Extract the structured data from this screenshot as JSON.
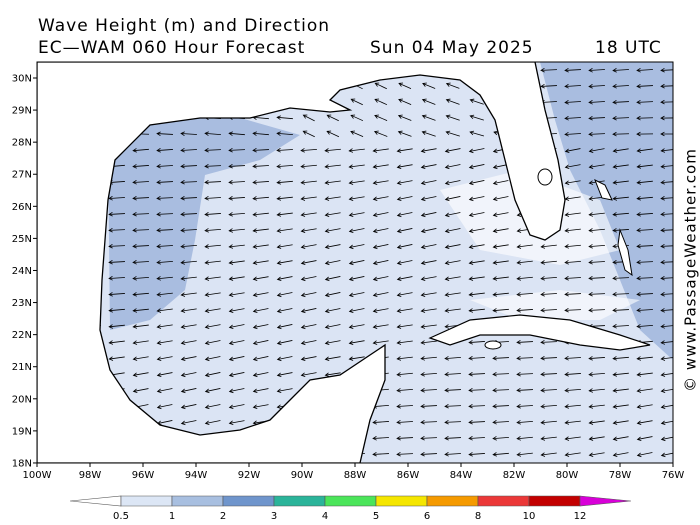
{
  "header": {
    "title": "Wave Height (m) and Direction",
    "subtitle": "EC—WAM 060 Hour Forecast",
    "date": "Sun 04 May 2025",
    "time": "18 UTC"
  },
  "map": {
    "lat_labels": [
      "30N",
      "29N",
      "28N",
      "27N",
      "26N",
      "25N",
      "24N",
      "23N",
      "22N",
      "21N",
      "20N",
      "19N",
      "18N"
    ],
    "lon_labels": [
      "100W",
      "98W",
      "96W",
      "94W",
      "92W",
      "90W",
      "88W",
      "86W",
      "84W",
      "82W",
      "80W",
      "78W",
      "76W"
    ]
  },
  "colorbar": {
    "labels": [
      0.5,
      1,
      2,
      3,
      4,
      5,
      6,
      8,
      10,
      12
    ],
    "colors": [
      "#ffffff",
      "#dce6f5",
      "#a8bfe0",
      "#6f95cc",
      "#2bb49a",
      "#4be55a",
      "#f5e600",
      "#f59a00",
      "#eb3838",
      "#c30000",
      "#d800d8"
    ]
  },
  "watermark": "© www.PassageWeather.com"
}
